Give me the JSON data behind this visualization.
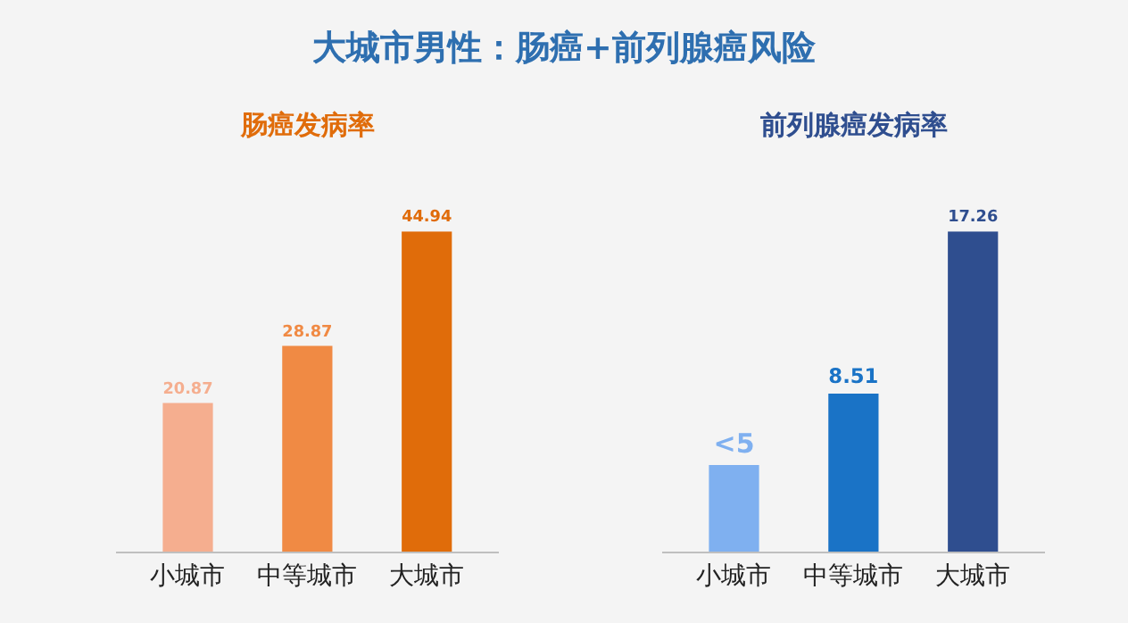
{
  "chart_data": [
    {
      "type": "other",
      "title": "大城市男性：肠癌+前列腺癌风险"
    },
    {
      "type": "bar",
      "title": "肠癌发病率",
      "categories": [
        "小城市",
        "中等城市",
        "大城市"
      ],
      "values": [
        20.87,
        28.87,
        44.94
      ],
      "colors": [
        "#f5ae8f",
        "#f08a44",
        "#e06c0a"
      ],
      "data_labels": true
    },
    {
      "type": "bar",
      "title": "前列腺癌发病率",
      "categories": [
        "小城市",
        "中等城市",
        "大城市"
      ],
      "values": [
        4.66,
        8.51,
        17.26
      ],
      "colors": [
        "#7fb0f0",
        "#1a73c6",
        "#2f4e8f"
      ],
      "value_labels": [
        "<5",
        "8.51",
        "17.26"
      ]
    }
  ]
}
